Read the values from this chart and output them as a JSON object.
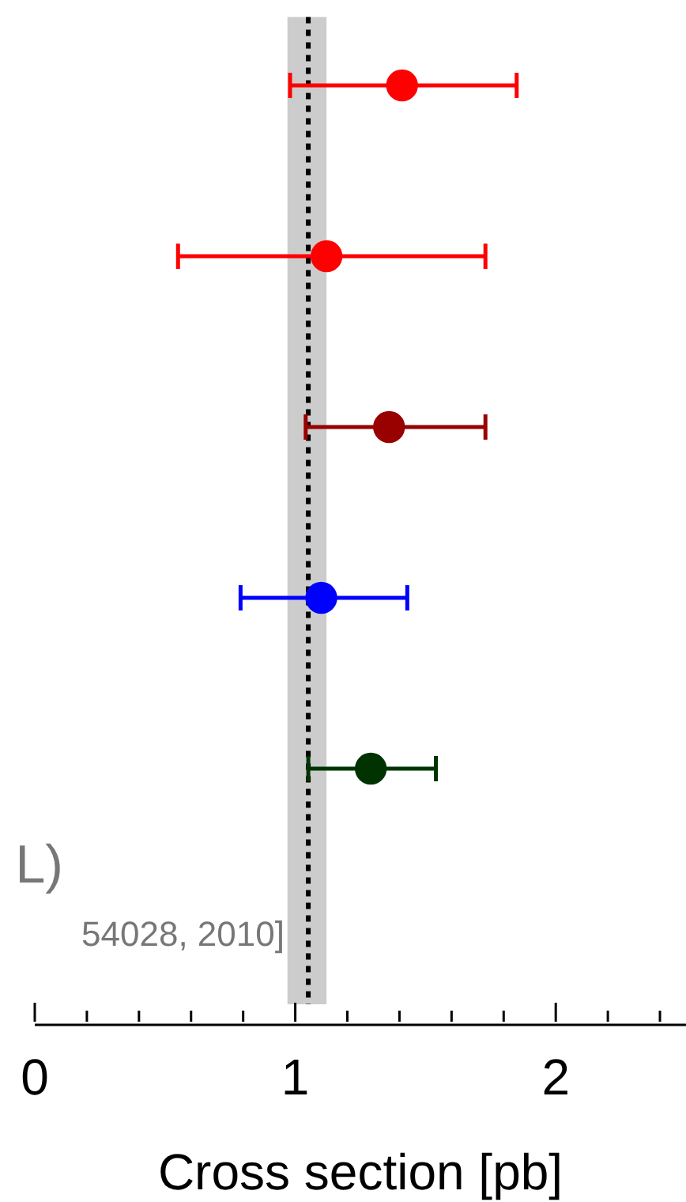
{
  "chart_data": {
    "type": "scatter",
    "orientation": "horizontal",
    "xlabel": "Cross section [pb]",
    "categories": [
      null,
      null,
      null,
      null,
      null,
      null
    ],
    "values": [
      1.41,
      1.12,
      1.36,
      1.1,
      1.29,
      null
    ],
    "colors": [
      "#ff0000",
      "#ff0000",
      "#990000",
      "#0000ff",
      "#003300",
      null
    ],
    "errors": [
      [
        0.98,
        1.85
      ],
      [
        0.55,
        1.73
      ],
      [
        1.04,
        1.73
      ],
      [
        0.79,
        1.43
      ],
      [
        1.05,
        1.54
      ],
      null
    ],
    "marker": "circle",
    "xlim": [
      0,
      2.5
    ],
    "xticks": [
      0,
      {
        "value": 0.2,
        "label": null
      },
      {
        "value": 0.4,
        "label": null
      },
      {
        "value": 0.6,
        "label": null
      },
      {
        "value": 0.8,
        "label": null
      },
      1,
      {
        "value": 1.2,
        "label": null
      },
      {
        "value": 1.4,
        "label": null
      },
      {
        "value": 1.6,
        "label": null
      },
      {
        "value": 1.8,
        "label": null
      },
      2,
      {
        "value": 2.2,
        "label": null
      },
      {
        "value": 2.4,
        "label": null
      }
    ],
    "tick_labels": "x",
    "ref_lines": [
      {
        "axis": "x",
        "value": 1.05,
        "color": "#000000",
        "line_style": "dotted"
      }
    ],
    "bands": [
      {
        "axis": "x",
        "from": 0.97,
        "to": 1.12,
        "color": "#cccccc"
      }
    ],
    "annotations": [
      "L)",
      "54028, 2010]"
    ]
  }
}
